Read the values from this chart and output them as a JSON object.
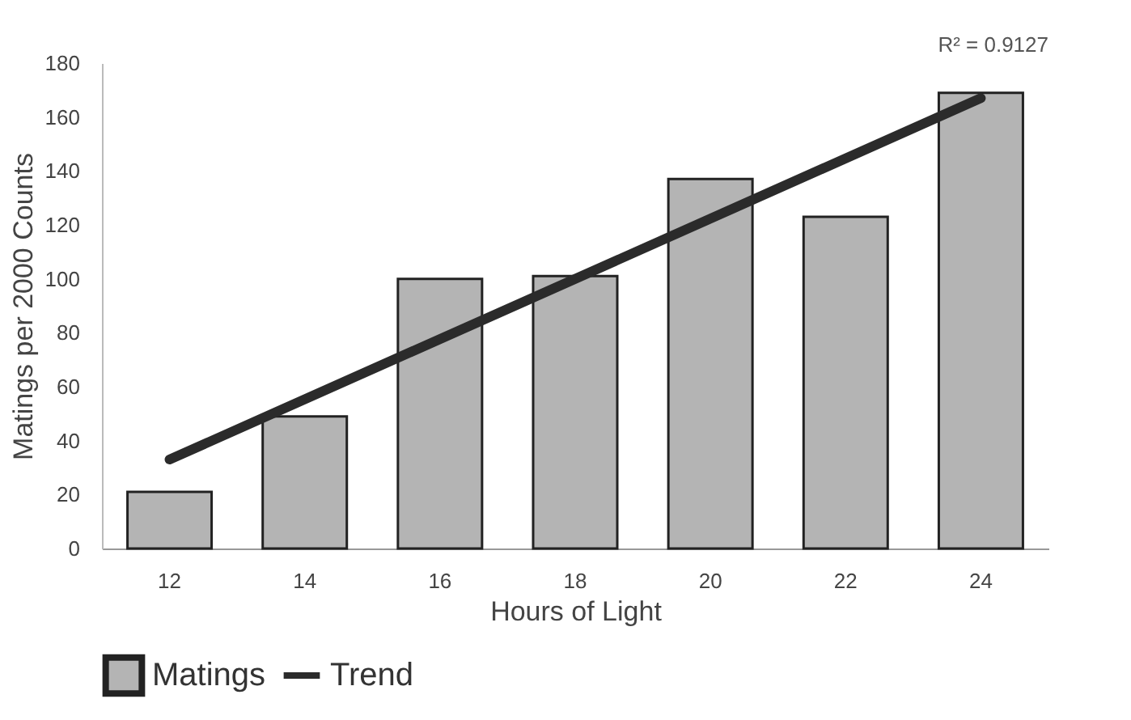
{
  "chart_data": {
    "type": "bar",
    "xlabel": "Hours of Light",
    "ylabel": "Matings per 2000 Counts",
    "categories": [
      "12",
      "14",
      "16",
      "18",
      "20",
      "22",
      "24"
    ],
    "series": [
      {
        "name": "Matings",
        "color": "#b4b4b4",
        "values": [
          21,
          49,
          100,
          101,
          137,
          123,
          169
        ]
      },
      {
        "name": "Trend",
        "type": "line",
        "color": "#2b2b2b",
        "x": [
          "12",
          "24"
        ],
        "values": [
          33,
          167
        ]
      }
    ],
    "ylim": [
      0,
      180
    ],
    "yticks": [
      0,
      20,
      40,
      60,
      80,
      100,
      120,
      140,
      160,
      180
    ],
    "annotations": [
      "R² = 0.9127"
    ],
    "legend": "bottom",
    "grid": false
  }
}
